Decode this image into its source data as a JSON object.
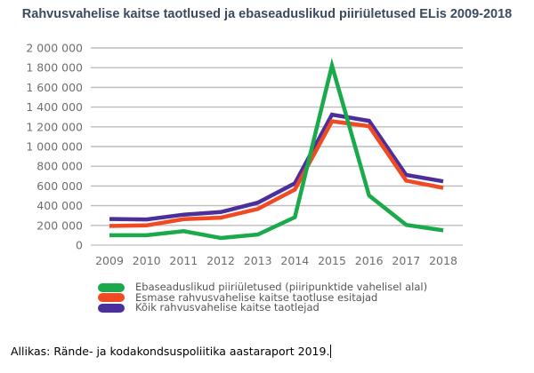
{
  "chart_data": {
    "type": "line",
    "title": "Rahvusvahelise kaitse taotlused ja ebaseaduslikud piiriületused ELis 2009-2018",
    "xlabel": "",
    "ylabel": "",
    "x": [
      "2009",
      "2010",
      "2011",
      "2012",
      "2013",
      "2014",
      "2015",
      "2016",
      "2017",
      "2018"
    ],
    "ylim": [
      0,
      2000000
    ],
    "yticks": [
      0,
      200000,
      400000,
      600000,
      800000,
      1000000,
      1200000,
      1400000,
      1600000,
      1800000,
      2000000
    ],
    "ytick_labels": [
      "0",
      "200 000",
      "400 000",
      "600 000",
      "800 000",
      "1 000 000",
      "1 200 000",
      "1 400 000",
      "1 600 000",
      "1 800 000",
      "2 000 000"
    ],
    "grid": true,
    "legend_position": "bottom",
    "series": [
      {
        "name": "Ebaseaduslikud piiriületused (piiripunktide vahelisel alal)",
        "color": "#1aaa4b",
        "values": [
          100000,
          100000,
          141000,
          72000,
          107000,
          283000,
          1822000,
          503000,
          205000,
          150000
        ]
      },
      {
        "name": "Esmase rahvusvahelise kaitse taotluse esitajad",
        "color": "#f04a24",
        "values": [
          195000,
          200000,
          263000,
          278000,
          367000,
          563000,
          1257000,
          1206000,
          654000,
          581000
        ]
      },
      {
        "name": "Kõik rahvusvahelise kaitse taotlejad",
        "color": "#4b2f9a",
        "values": [
          265000,
          260000,
          309000,
          335000,
          431000,
          627000,
          1323000,
          1260000,
          712000,
          647000
        ]
      }
    ]
  },
  "footer": {
    "source": "Allikas: Rände- ja kodakondsuspoliitika aastaraport 2019."
  }
}
